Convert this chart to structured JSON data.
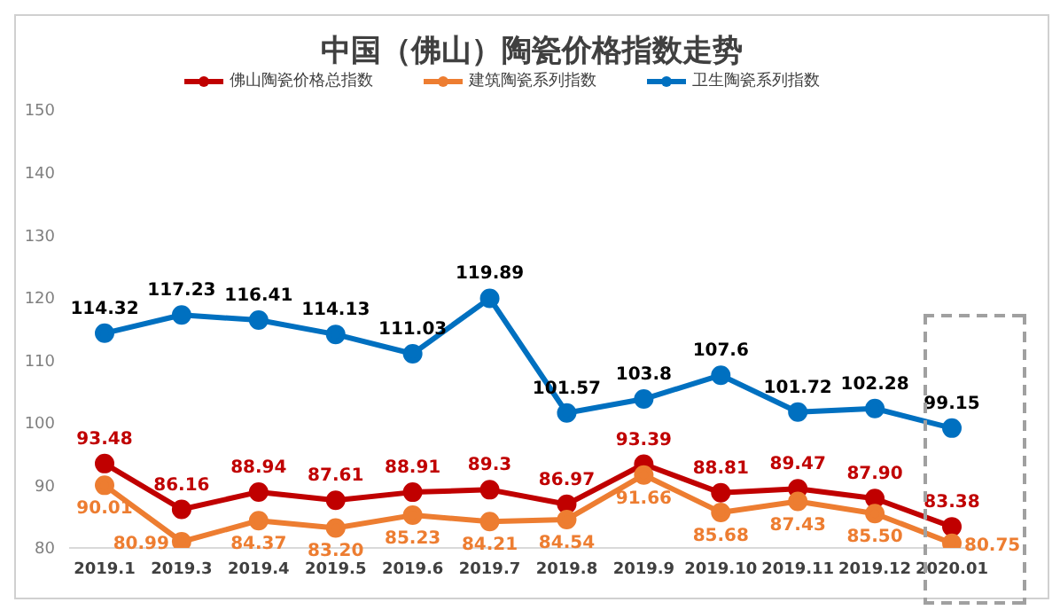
{
  "chart_data": {
    "type": "line",
    "title": "中国（佛山）陶瓷价格指数走势",
    "categories": [
      "2019.1",
      "2019.3",
      "2019.4",
      "2019.5",
      "2019.6",
      "2019.7",
      "2019.8",
      "2019.9",
      "2019.10",
      "2019.11",
      "2019.12",
      "2020.01"
    ],
    "series": [
      {
        "name": "佛山陶瓷价格总指数",
        "color": "#c00000",
        "values": [
          93.48,
          86.16,
          88.94,
          87.61,
          88.91,
          89.3,
          86.97,
          93.39,
          88.81,
          89.47,
          87.9,
          83.38
        ],
        "value_labels": [
          "93.48",
          "86.16",
          "88.94",
          "87.61",
          "88.91",
          "89.3",
          "86.97",
          "93.39",
          "88.81",
          "89.47",
          "87.90",
          "83.38"
        ]
      },
      {
        "name": "建筑陶瓷系列指数",
        "color": "#ed7d31",
        "values": [
          90.01,
          80.99,
          84.37,
          83.2,
          85.23,
          84.21,
          84.54,
          91.66,
          85.68,
          87.43,
          85.5,
          80.75
        ],
        "value_labels": [
          "90.01",
          "80.99",
          "84.37",
          "83.20",
          "85.23",
          "84.21",
          "84.54",
          "91.66",
          "85.68",
          "87.43",
          "85.50",
          "80.75"
        ]
      },
      {
        "name": "卫生陶瓷系列指数",
        "color": "#0070c0",
        "values": [
          114.32,
          117.23,
          116.41,
          114.13,
          111.03,
          119.89,
          101.57,
          103.8,
          107.6,
          101.72,
          102.28,
          99.15
        ],
        "value_labels": [
          "114.32",
          "117.23",
          "116.41",
          "114.13",
          "111.03",
          "119.89",
          "101.57",
          "103.8",
          "107.6",
          "101.72",
          "102.28",
          "99.15"
        ]
      }
    ],
    "ylim": [
      80,
      150
    ],
    "yticks": [
      80,
      90,
      100,
      110,
      120,
      130,
      140,
      150
    ],
    "grid": false,
    "legend": "top",
    "marker": "circle",
    "line_style": "solid"
  }
}
